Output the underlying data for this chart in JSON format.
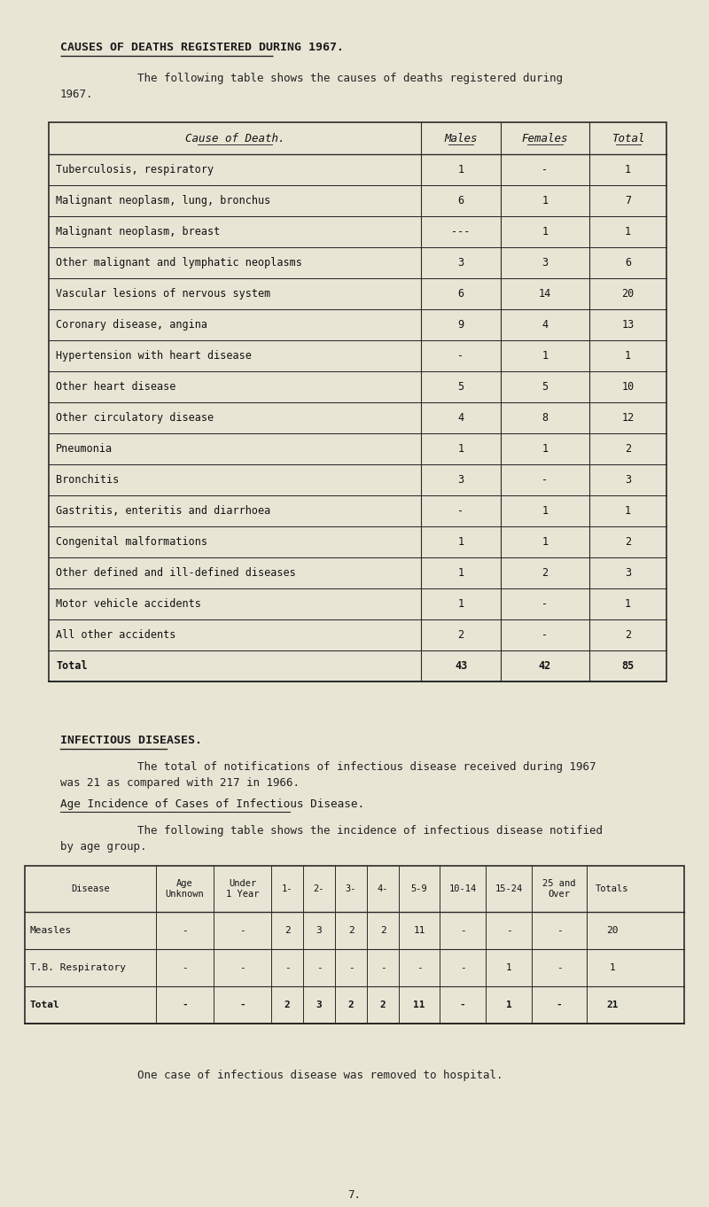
{
  "bg_color": "#e8e5d5",
  "page_title": "CAUSES OF DEATHS REGISTERED DURING 1967.",
  "intro_text1": "The following table shows the causes of deaths registered during",
  "intro_text2": "1967.",
  "table1_headers": [
    "Cause of Death.",
    "Males",
    "Females",
    "Total"
  ],
  "table1_rows": [
    [
      "Tuberculosis, respiratory",
      "1",
      "-",
      "1"
    ],
    [
      "Malignant neoplasm, lung, bronchus",
      "6",
      "1",
      "7"
    ],
    [
      "Malignant neoplasm, breast",
      "---",
      "1",
      "1"
    ],
    [
      "Other malignant and lymphatic neoplasms",
      "3",
      "3",
      "6"
    ],
    [
      "Vascular lesions of nervous system",
      "6",
      "14",
      "20"
    ],
    [
      "Coronary disease, angina",
      "9",
      "4",
      "13"
    ],
    [
      "Hypertension with heart disease",
      "-",
      "1",
      "1"
    ],
    [
      "Other heart disease",
      "5",
      "5",
      "10"
    ],
    [
      "Other circulatory disease",
      "4",
      "8",
      "12"
    ],
    [
      "Pneumonia",
      "1",
      "1",
      "2"
    ],
    [
      "Bronchitis",
      "3",
      "-",
      "3"
    ],
    [
      "Gastritis, enteritis and diarrhoea",
      "-",
      "1",
      "1"
    ],
    [
      "Congenital malformations",
      "1",
      "1",
      "2"
    ],
    [
      "Other defined and ill-defined diseases",
      "1",
      "2",
      "3"
    ],
    [
      "Motor vehicle accidents",
      "1",
      "-",
      "1"
    ],
    [
      "All other accidents",
      "2",
      "-",
      "2"
    ],
    [
      "Total",
      "43",
      "42",
      "85"
    ]
  ],
  "section2_title": "INFECTIOUS DISEASES.",
  "section2_para1": "The total of notifications of infectious disease received during 1967",
  "section2_para2": "was 21 as compared with 217 in 1966.",
  "section2_sub": "Age Incidence of Cases of Infectious Disease.",
  "section2_para3": "The following table shows the incidence of infectious disease notified",
  "section2_para4": "by age group.",
  "table2_headers": [
    "Disease",
    "Age\nUnknown",
    "Under\n1 Year",
    "1-",
    "2-",
    "3-",
    "4-",
    "5-9",
    "10-14",
    "15-24",
    "25 and\nOver",
    "Totals"
  ],
  "table2_rows": [
    [
      "Measles",
      "-",
      "-",
      "2",
      "3",
      "2",
      "2",
      "11",
      "-",
      "-",
      "-",
      "20"
    ],
    [
      "T.B. Respiratory",
      "-",
      "-",
      "-",
      "-",
      "-",
      "-",
      "-",
      "-",
      "1",
      "-",
      "1"
    ],
    [
      "Total",
      "-",
      "-",
      "2",
      "3",
      "2",
      "2",
      "11",
      "-",
      "1",
      "-",
      "21"
    ]
  ],
  "footer_text": "One case of infectious disease was removed to hospital.",
  "page_num": "7."
}
